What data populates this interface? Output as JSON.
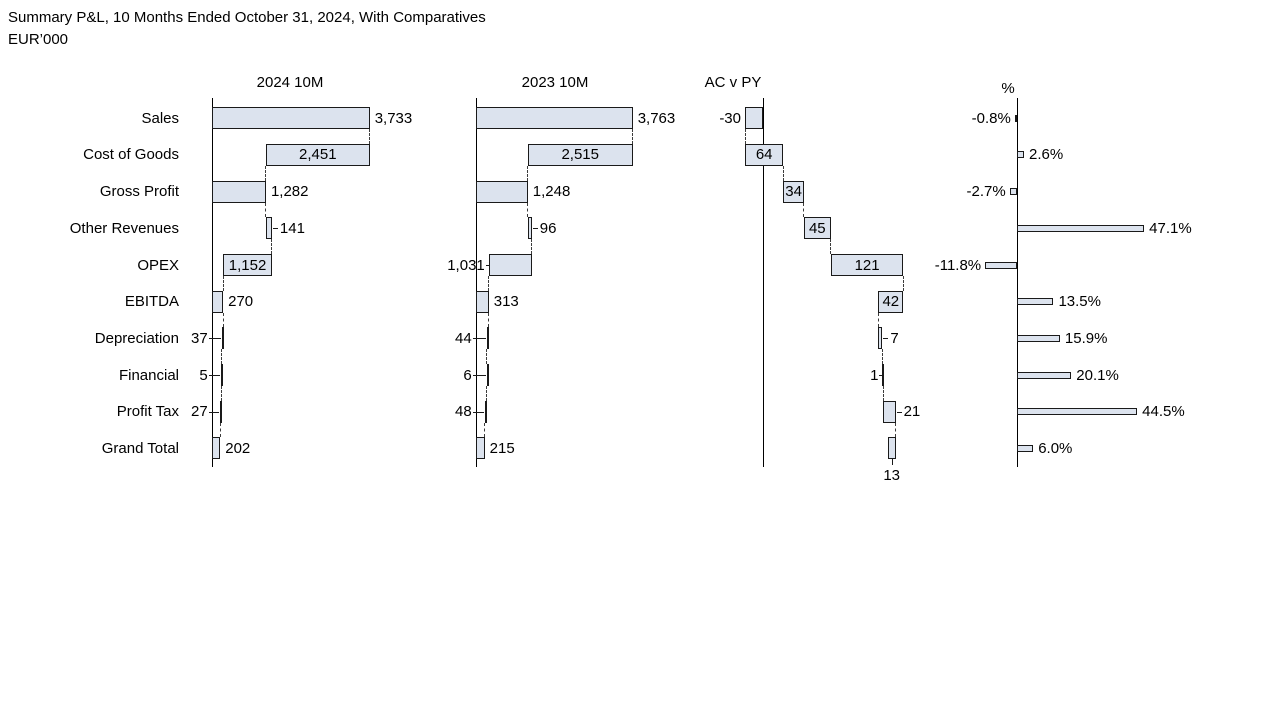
{
  "title": "Summary P&L, 10 Months Ended October 31, 2024, With Comparatives",
  "subtitle": "EUR’000",
  "colors": {
    "bar_fill": "#dce3ee",
    "bar_border": "#1a1a1a",
    "axis": "#000000",
    "connector": "#3c3c3c",
    "text": "#000000"
  },
  "categories": [
    "Sales",
    "Cost of Goods",
    "Gross Profit",
    "Other Revenues",
    "OPEX",
    "EBITDA",
    "Depreciation",
    "Financial",
    "Profit Tax",
    "Grand Total"
  ],
  "chart_data": [
    {
      "type": "bar",
      "subtype": "horizontal-waterfall",
      "title": "2024 10M",
      "categories": [
        "Sales",
        "Cost of Goods",
        "Gross Profit",
        "Other Revenues",
        "OPEX",
        "EBITDA",
        "Depreciation",
        "Financial",
        "Profit Tax",
        "Grand Total"
      ],
      "values": [
        3733,
        2451,
        1282,
        141,
        1152,
        270,
        37,
        5,
        27,
        202
      ],
      "value_labels": [
        "3,733",
        "2,451",
        "1,282",
        "141",
        "1,152",
        "270",
        "37",
        "5",
        "27",
        "202"
      ],
      "segments": [
        [
          0,
          3733
        ],
        [
          1282,
          3733
        ],
        [
          0,
          1282
        ],
        [
          1282,
          1423
        ],
        [
          271,
          1423
        ],
        [
          0,
          270
        ],
        [
          233,
          270
        ],
        [
          228,
          233
        ],
        [
          202,
          229
        ],
        [
          0,
          202
        ]
      ],
      "label_side": [
        "right",
        "inside",
        "right",
        "right",
        "inside",
        "right",
        "left",
        "left",
        "left",
        "right"
      ],
      "label_tick": [
        false,
        false,
        false,
        true,
        false,
        false,
        true,
        true,
        true,
        false
      ],
      "connectors": [
        3733,
        1282,
        1282,
        1423,
        271,
        270,
        233,
        228,
        202
      ],
      "xrange": [
        0,
        3733
      ]
    },
    {
      "type": "bar",
      "subtype": "horizontal-waterfall",
      "title": "2023 10M",
      "categories": [
        "Sales",
        "Cost of Goods",
        "Gross Profit",
        "Other Revenues",
        "OPEX",
        "EBITDA",
        "Depreciation",
        "Financial",
        "Profit Tax",
        "Grand Total"
      ],
      "values": [
        3763,
        2515,
        1248,
        96,
        1031,
        313,
        44,
        6,
        48,
        215
      ],
      "value_labels": [
        "3,763",
        "2,515",
        "1,248",
        "96",
        "1,031",
        "313",
        "44",
        "6",
        "48",
        "215"
      ],
      "segments": [
        [
          0,
          3763
        ],
        [
          1248,
          3763
        ],
        [
          0,
          1248
        ],
        [
          1248,
          1344
        ],
        [
          313,
          1344
        ],
        [
          0,
          313
        ],
        [
          269,
          313
        ],
        [
          263,
          269
        ],
        [
          215,
          263
        ],
        [
          0,
          215
        ]
      ],
      "label_side": [
        "right",
        "inside",
        "right",
        "right",
        "left",
        "right",
        "left",
        "left",
        "left",
        "right"
      ],
      "label_tick": [
        false,
        false,
        false,
        true,
        true,
        false,
        true,
        true,
        true,
        false
      ],
      "connectors": [
        3763,
        1248,
        1248,
        1344,
        313,
        313,
        269,
        263,
        215
      ],
      "xrange": [
        0,
        3763
      ]
    },
    {
      "type": "bar",
      "subtype": "variance-waterfall",
      "title": "AC v PY",
      "categories": [
        "Sales",
        "Cost of Goods",
        "Gross Profit",
        "Other Revenues",
        "OPEX",
        "EBITDA",
        "Depreciation",
        "Financial",
        "Profit Tax",
        "Grand Total"
      ],
      "values": [
        -30,
        64,
        34,
        45,
        121,
        42,
        7,
        1,
        21,
        13
      ],
      "value_labels": [
        "-30",
        "64",
        "34",
        "45",
        "121",
        "42",
        "7",
        "1",
        "21",
        "13"
      ],
      "segments": [
        [
          -30,
          0
        ],
        [
          -30,
          34
        ],
        [
          34,
          68
        ],
        [
          68,
          113
        ],
        [
          113,
          234
        ],
        [
          192,
          234
        ],
        [
          192,
          199
        ],
        [
          199,
          200
        ],
        [
          200,
          221
        ],
        [
          208,
          221
        ]
      ],
      "label_side": [
        "left",
        "inside",
        "inside",
        "inside",
        "inside",
        "inside",
        "right",
        "left",
        "right",
        "below"
      ],
      "label_tick": [
        false,
        false,
        false,
        false,
        false,
        false,
        true,
        true,
        true,
        true
      ],
      "connectors": [
        -30,
        34,
        68,
        113,
        234,
        192,
        199,
        200,
        221
      ],
      "xrange": [
        -30,
        234
      ]
    },
    {
      "type": "bar",
      "subtype": "variance-percent",
      "title": "%",
      "categories": [
        "Sales",
        "Cost of Goods",
        "Gross Profit",
        "Other Revenues",
        "OPEX",
        "EBITDA",
        "Depreciation",
        "Financial",
        "Profit Tax",
        "Grand Total"
      ],
      "values": [
        -0.8,
        2.6,
        -2.7,
        47.1,
        -11.8,
        13.5,
        15.9,
        20.1,
        44.5,
        6.0
      ],
      "value_labels": [
        "-0.8%",
        "2.6%",
        "-2.7%",
        "47.1%",
        "-11.8%",
        "13.5%",
        "15.9%",
        "20.1%",
        "44.5%",
        "6.0%"
      ],
      "segments": [
        [
          -0.8,
          0
        ],
        [
          0,
          2.6
        ],
        [
          -2.7,
          0
        ],
        [
          0,
          47.1
        ],
        [
          -11.8,
          0
        ],
        [
          0,
          13.5
        ],
        [
          0,
          15.9
        ],
        [
          0,
          20.1
        ],
        [
          0,
          44.5
        ],
        [
          0,
          6.0
        ]
      ],
      "label_side": [
        "left",
        "right",
        "left",
        "right",
        "left",
        "right",
        "right",
        "right",
        "right",
        "right"
      ],
      "label_tick": [
        false,
        false,
        false,
        false,
        false,
        false,
        false,
        false,
        false,
        false
      ],
      "connectors": [],
      "xrange": [
        -11.8,
        47.1
      ]
    }
  ]
}
